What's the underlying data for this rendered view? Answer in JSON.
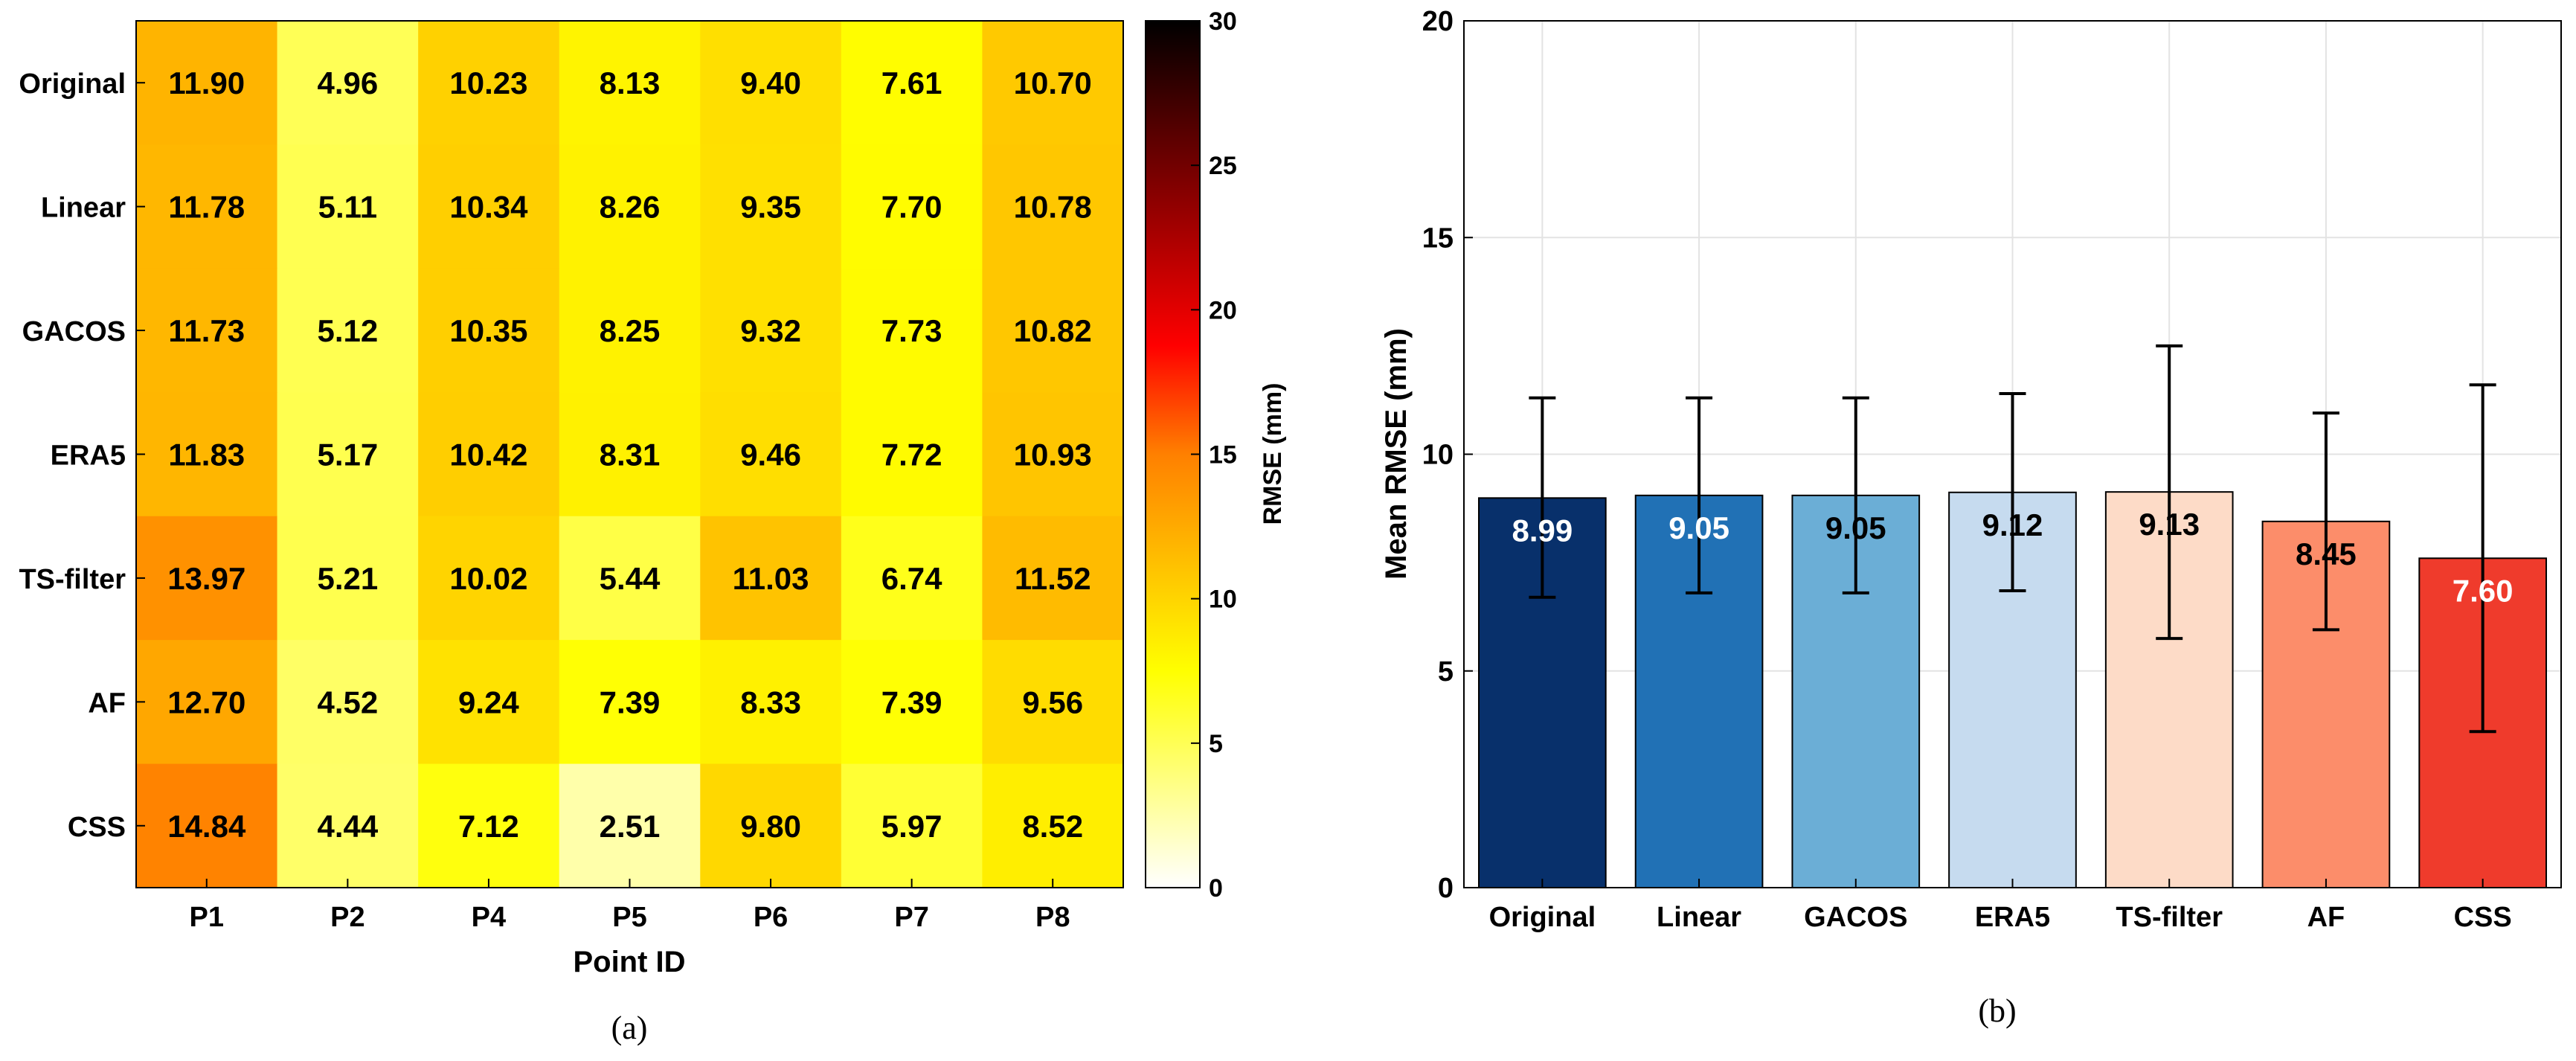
{
  "chart_data": [
    {
      "type": "heatmap",
      "panel_label": "(a)",
      "rows": [
        "Original",
        "Linear",
        "GACOS",
        "ERA5",
        "TS-filter",
        "AF",
        "CSS"
      ],
      "columns": [
        "P1",
        "P2",
        "P4",
        "P5",
        "P6",
        "P7",
        "P8"
      ],
      "values": [
        [
          11.9,
          4.96,
          10.23,
          8.13,
          9.4,
          7.61,
          10.7
        ],
        [
          11.78,
          5.11,
          10.34,
          8.26,
          9.35,
          7.7,
          10.78
        ],
        [
          11.73,
          5.12,
          10.35,
          8.25,
          9.32,
          7.73,
          10.82
        ],
        [
          11.83,
          5.17,
          10.42,
          8.31,
          9.46,
          7.72,
          10.93
        ],
        [
          13.97,
          5.21,
          10.02,
          5.44,
          11.03,
          6.74,
          11.52
        ],
        [
          12.7,
          4.52,
          9.24,
          7.39,
          8.33,
          7.39,
          9.56
        ],
        [
          14.84,
          4.44,
          7.12,
          2.51,
          9.8,
          5.97,
          8.52
        ]
      ],
      "xlabel": "Point ID",
      "colorbar": {
        "label": "RMSE (mm)",
        "range": [
          0,
          30
        ],
        "ticks": [
          0,
          5,
          10,
          15,
          20,
          25,
          30
        ],
        "colormap": "hot (reversed)"
      }
    },
    {
      "type": "bar",
      "panel_label": "(b)",
      "categories": [
        "Original",
        "Linear",
        "GACOS",
        "ERA5",
        "TS-filter",
        "AF",
        "CSS"
      ],
      "values": [
        8.99,
        9.05,
        9.05,
        9.12,
        9.13,
        8.45,
        7.6
      ],
      "error_low": [
        6.7,
        6.8,
        6.8,
        6.85,
        5.75,
        5.95,
        3.6
      ],
      "error_high": [
        11.3,
        11.3,
        11.3,
        11.4,
        12.5,
        10.95,
        11.6
      ],
      "colors": [
        "#08306b",
        "#2171b5",
        "#6baed6",
        "#c6dbef",
        "#fddbc7",
        "#fc8d6a",
        "#ef3b2c"
      ],
      "label_colors": [
        "#ffffff",
        "#ffffff",
        "#000000",
        "#000000",
        "#000000",
        "#000000",
        "#ffffff"
      ],
      "ylabel": "Mean RMSE (mm)",
      "xlabel": "",
      "ylim": [
        0,
        20
      ],
      "yticks": [
        0,
        5,
        10,
        15,
        20
      ],
      "grid": true
    }
  ]
}
